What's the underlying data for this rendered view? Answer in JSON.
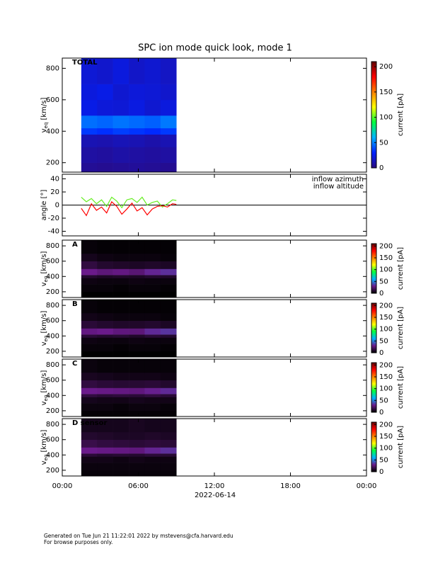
{
  "figure": {
    "title": "SPC ion mode quick look, mode 1",
    "xlim": [
      0,
      24
    ],
    "xticks": [
      {
        "value": 0,
        "label": "00:00"
      },
      {
        "value": 6,
        "label": "06:00"
      },
      {
        "value": 12,
        "label": "12:00"
      },
      {
        "value": 18,
        "label": "18:00"
      },
      {
        "value": 24,
        "label": "00:00"
      }
    ],
    "xlabel": "2022-06-14",
    "footer": [
      "Generated on Tue Jun 21 11:22:01 2022 by mstevens@cfa.harvard.edu",
      "For browse purposes only."
    ]
  },
  "chart_data": [
    {
      "type": "heatmap",
      "label": "TOTAL",
      "ylabel_parts": [
        "v",
        "eq",
        " [km/s]"
      ],
      "ylim": [
        140,
        865
      ],
      "yticks": [
        200,
        400,
        600,
        800
      ],
      "x_bins": [
        1.5,
        2.75,
        4,
        5.25,
        6.5,
        7.75,
        9
      ],
      "y_bins": [
        140,
        200,
        300,
        380,
        420,
        500,
        600,
        700,
        865
      ],
      "z": [
        [
          5,
          8,
          12,
          35,
          46,
          24,
          22,
          20
        ],
        [
          4,
          7,
          11,
          33,
          44,
          21,
          24,
          18
        ],
        [
          5,
          9,
          13,
          36,
          47,
          20,
          19,
          22
        ],
        [
          6,
          8,
          12,
          34,
          45,
          23,
          21,
          17
        ],
        [
          5,
          7,
          10,
          32,
          43,
          19,
          20,
          19
        ],
        [
          4,
          8,
          12,
          35,
          48,
          22,
          18,
          16
        ]
      ],
      "clim": [
        0,
        210
      ],
      "cticks": [
        0,
        50,
        100,
        150,
        200
      ],
      "clabel": "current [pA]",
      "colormap": [
        "#2a0a80",
        "#0020ff",
        "#00b4ff",
        "#00ff40",
        "#ffff00",
        "#ff8000",
        "#ff0000",
        "#600000"
      ]
    },
    {
      "type": "line",
      "ylabel": "angle [°]",
      "ylim": [
        -47,
        47
      ],
      "yticks": [
        -40,
        -20,
        0,
        20,
        40
      ],
      "zero_line": true,
      "x": [
        1.5,
        1.9,
        2.3,
        2.7,
        3.1,
        3.5,
        3.9,
        4.3,
        4.7,
        5.1,
        5.5,
        5.9,
        6.3,
        6.7,
        7.1,
        7.5,
        7.9,
        8.3,
        8.7,
        9.0
      ],
      "series": [
        {
          "name": "inflow azimuth",
          "color": "#ff0000",
          "values": [
            -5,
            -16,
            2,
            -8,
            -3,
            -12,
            5,
            -2,
            -14,
            -6,
            3,
            -9,
            -4,
            -15,
            -6,
            -2,
            -1,
            -3,
            2,
            1
          ]
        },
        {
          "name": "inflow altitude",
          "color": "#66ee22",
          "values": [
            12,
            5,
            10,
            2,
            8,
            -2,
            12,
            6,
            -4,
            8,
            10,
            4,
            12,
            0,
            4,
            6,
            -3,
            2,
            8,
            7
          ]
        }
      ]
    },
    {
      "type": "heatmap",
      "label": "A",
      "ylabel_parts": [
        "v",
        "eq",
        " [km/s]"
      ],
      "ylim": [
        125,
        875
      ],
      "yticks": [
        200,
        400,
        600,
        800
      ],
      "x_bins": [
        1.5,
        2.75,
        4,
        5.25,
        6.5,
        7.75,
        9
      ],
      "y_bins": [
        125,
        200,
        300,
        380,
        420,
        500,
        600,
        700,
        875
      ],
      "z": [
        [
          0,
          2,
          4,
          10,
          30,
          14,
          6,
          2
        ],
        [
          0,
          2,
          3,
          8,
          26,
          10,
          4,
          1
        ],
        [
          0,
          1,
          3,
          9,
          28,
          9,
          3,
          1
        ],
        [
          0,
          2,
          4,
          8,
          25,
          8,
          3,
          1
        ],
        [
          0,
          2,
          3,
          10,
          32,
          9,
          3,
          1
        ],
        [
          0,
          1,
          3,
          9,
          34,
          8,
          2,
          1
        ]
      ],
      "clim": [
        0,
        210
      ],
      "cticks": [
        0,
        50,
        100,
        150,
        200
      ],
      "clabel": "current [pA]",
      "colormap": [
        "#000000",
        "#6a1a8a",
        "#00b4ff",
        "#00ff40",
        "#ffff00",
        "#ff8000",
        "#ff0000",
        "#600000"
      ]
    },
    {
      "type": "heatmap",
      "label": "B",
      "ylabel_parts": [
        "v",
        "eq",
        " [km/s]"
      ],
      "ylim": [
        125,
        875
      ],
      "yticks": [
        200,
        400,
        600,
        800
      ],
      "x_bins": [
        1.5,
        2.75,
        4,
        5.25,
        6.5,
        7.75,
        9
      ],
      "y_bins": [
        125,
        200,
        300,
        380,
        420,
        500,
        600,
        700,
        875
      ],
      "z": [
        [
          0,
          2,
          4,
          12,
          28,
          12,
          5,
          2
        ],
        [
          0,
          2,
          3,
          10,
          30,
          10,
          4,
          1
        ],
        [
          0,
          1,
          3,
          11,
          27,
          9,
          3,
          1
        ],
        [
          0,
          2,
          4,
          9,
          26,
          9,
          3,
          1
        ],
        [
          0,
          2,
          3,
          12,
          33,
          10,
          3,
          1
        ],
        [
          0,
          1,
          3,
          10,
          35,
          8,
          2,
          1
        ]
      ],
      "clim": [
        0,
        210
      ],
      "cticks": [
        0,
        50,
        100,
        150,
        200
      ],
      "clabel": "current [pA]",
      "colormap": [
        "#000000",
        "#6a1a8a",
        "#00b4ff",
        "#00ff40",
        "#ffff00",
        "#ff8000",
        "#ff0000",
        "#600000"
      ]
    },
    {
      "type": "heatmap",
      "label": "C",
      "ylabel_parts": [
        "v",
        "eq",
        " [km/s]"
      ],
      "ylim": [
        125,
        875
      ],
      "yticks": [
        200,
        400,
        600,
        800
      ],
      "x_bins": [
        1.5,
        2.75,
        4,
        5.25,
        6.5,
        7.75,
        9
      ],
      "y_bins": [
        125,
        200,
        300,
        380,
        420,
        500,
        600,
        700,
        875
      ],
      "z": [
        [
          1,
          3,
          6,
          14,
          30,
          14,
          7,
          3
        ],
        [
          1,
          3,
          5,
          12,
          29,
          12,
          6,
          2
        ],
        [
          1,
          2,
          5,
          13,
          28,
          11,
          5,
          2
        ],
        [
          1,
          3,
          6,
          12,
          27,
          11,
          5,
          2
        ],
        [
          1,
          3,
          5,
          14,
          31,
          12,
          5,
          2
        ],
        [
          1,
          2,
          5,
          12,
          33,
          10,
          4,
          2
        ]
      ],
      "clim": [
        0,
        210
      ],
      "cticks": [
        0,
        50,
        100,
        150,
        200
      ],
      "clabel": "current [pA]",
      "colormap": [
        "#000000",
        "#6a1a8a",
        "#00b4ff",
        "#00ff40",
        "#ffff00",
        "#ff8000",
        "#ff0000",
        "#600000"
      ]
    },
    {
      "type": "heatmap",
      "label": "D sensor",
      "ylabel_parts": [
        "v",
        "eq",
        " [km/s]"
      ],
      "ylim": [
        125,
        875
      ],
      "yticks": [
        200,
        400,
        600,
        800
      ],
      "x_bins": [
        1.5,
        2.75,
        4,
        5.25,
        6.5,
        7.75,
        9
      ],
      "y_bins": [
        125,
        200,
        300,
        380,
        420,
        500,
        600,
        700,
        875
      ],
      "z": [
        [
          2,
          3,
          5,
          12,
          30,
          16,
          10,
          6
        ],
        [
          2,
          3,
          5,
          10,
          29,
          14,
          9,
          6
        ],
        [
          2,
          3,
          4,
          11,
          28,
          13,
          8,
          6
        ],
        [
          2,
          3,
          5,
          10,
          27,
          12,
          8,
          7
        ],
        [
          2,
          3,
          4,
          12,
          32,
          13,
          9,
          6
        ],
        [
          2,
          3,
          4,
          11,
          34,
          12,
          8,
          6
        ]
      ],
      "clim": [
        0,
        210
      ],
      "cticks": [
        0,
        50,
        100,
        150,
        200
      ],
      "clabel": "current [pA]",
      "colormap": [
        "#000000",
        "#6a1a8a",
        "#00b4ff",
        "#00ff40",
        "#ffff00",
        "#ff8000",
        "#ff0000",
        "#600000"
      ]
    }
  ]
}
